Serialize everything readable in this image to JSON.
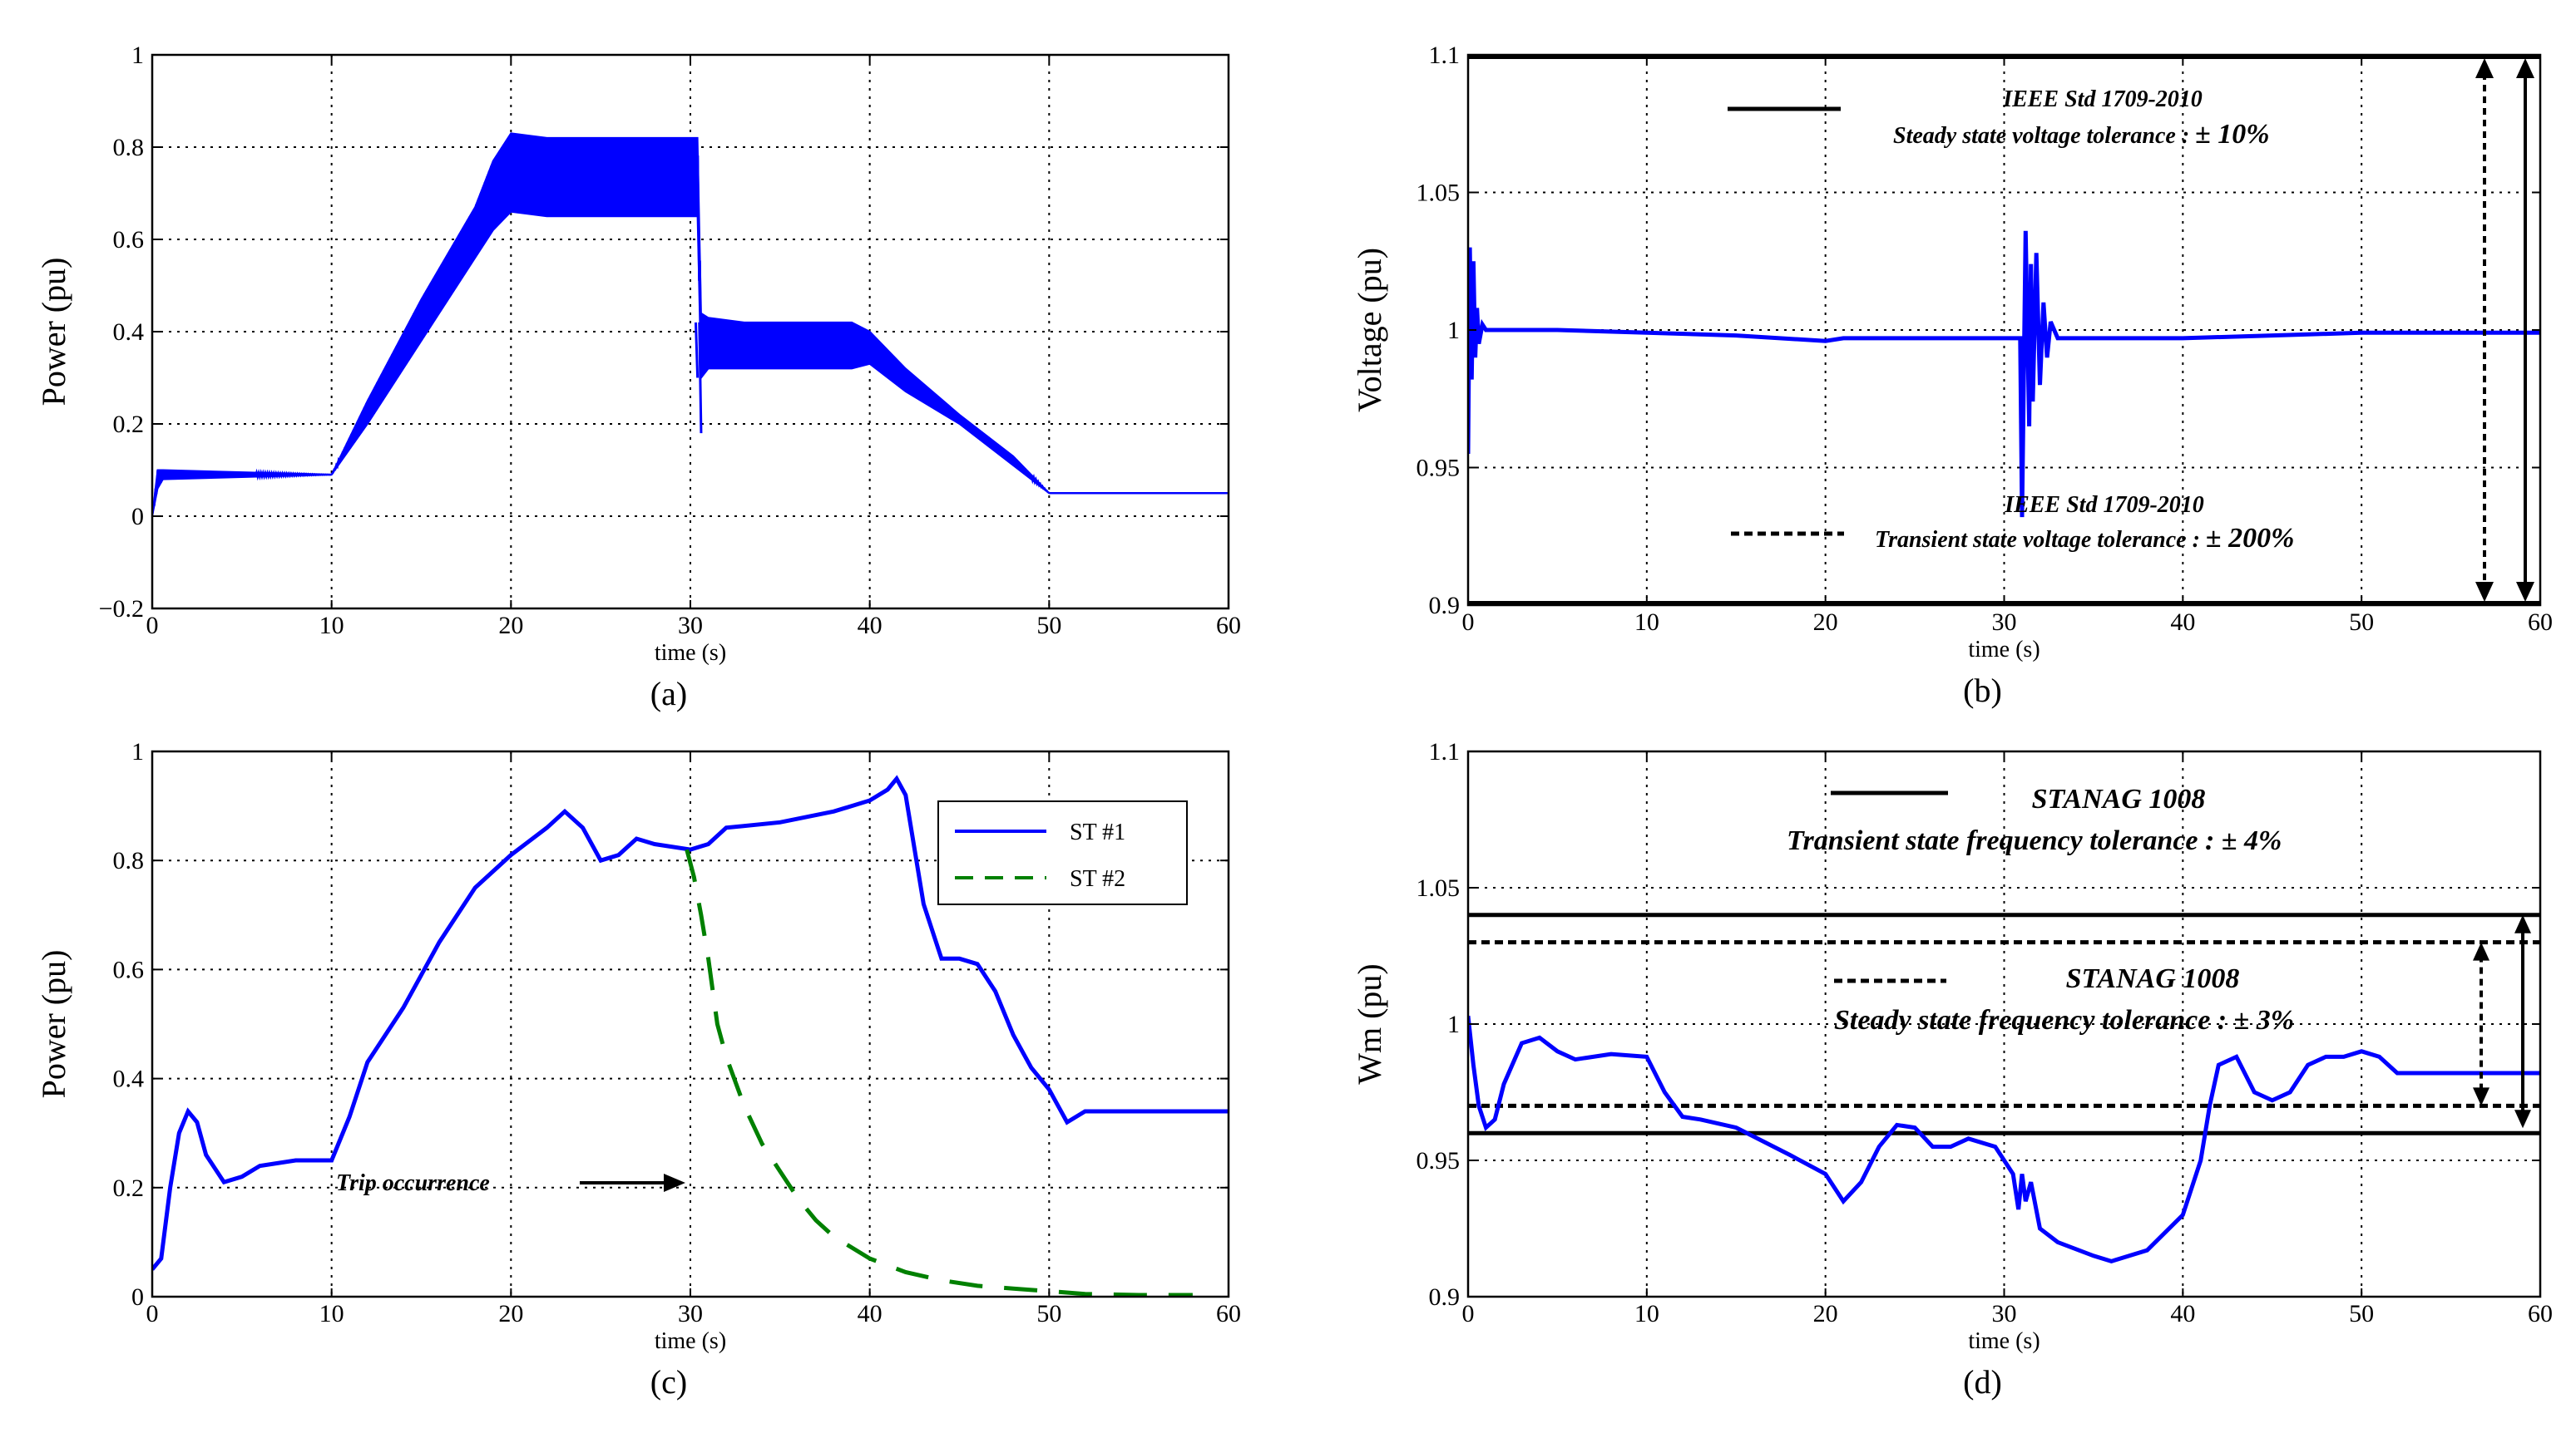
{
  "chart_data": [
    {
      "id": "a",
      "type": "line",
      "caption": "(a)",
      "xlabel": "time (s)",
      "ylabel": "Power (pu)",
      "xlim": [
        0,
        60
      ],
      "ylim": [
        -0.2,
        1
      ],
      "xticks": [
        0,
        10,
        20,
        30,
        40,
        50,
        60
      ],
      "yticks": [
        -0.2,
        0,
        0.2,
        0.4,
        0.6,
        0.8,
        1
      ],
      "ytick_labels": [
        "−0.2",
        "0",
        "0.2",
        "0.4",
        "0.6",
        "0.8",
        "1"
      ],
      "series": [
        {
          "name": "Power",
          "color": "#0000ff",
          "style": "solid",
          "band": {
            "x": [
              0.0,
              0.3,
              0.6,
              10.0,
              12.0,
              15.0,
              18.0,
              19.0,
              20.0,
              22.0,
              25.0,
              28.0,
              30.4,
              30.6,
              31.0,
              33.0,
              36.0,
              39.0,
              40.0,
              42.0,
              45.0,
              48.0,
              50.0,
              55.0,
              60.0
            ],
            "low": [
              0.0,
              0.06,
              0.08,
              0.09,
              0.2,
              0.38,
              0.56,
              0.62,
              0.66,
              0.65,
              0.65,
              0.65,
              0.65,
              0.3,
              0.32,
              0.32,
              0.32,
              0.32,
              0.33,
              0.27,
              0.2,
              0.11,
              0.05,
              0.05,
              0.05
            ],
            "high": [
              0.0,
              0.1,
              0.1,
              0.09,
              0.25,
              0.47,
              0.67,
              0.77,
              0.83,
              0.82,
              0.82,
              0.82,
              0.82,
              0.44,
              0.43,
              0.42,
              0.42,
              0.42,
              0.4,
              0.32,
              0.22,
              0.13,
              0.05,
              0.05,
              0.05
            ]
          },
          "spikes": [
            [
              30.5,
              0.18
            ],
            [
              30.3,
              0.3
            ]
          ]
        }
      ]
    },
    {
      "id": "b",
      "type": "line",
      "caption": "(b)",
      "xlabel": "time (s)",
      "ylabel": "Voltage (pu)",
      "xlim": [
        0,
        60
      ],
      "ylim": [
        0.9,
        1.1
      ],
      "xticks": [
        0,
        10,
        20,
        30,
        40,
        50,
        60
      ],
      "yticks": [
        0.9,
        0.95,
        1,
        1.05,
        1.1
      ],
      "ytick_labels": [
        "0.9",
        "0.95",
        "1",
        "1.05",
        "1.1"
      ],
      "series": [
        {
          "name": "Voltage",
          "color": "#0000ff",
          "style": "solid",
          "x": [
            0.0,
            0.1,
            0.2,
            0.3,
            0.4,
            0.5,
            0.6,
            0.8,
            1.0,
            2.0,
            5.0,
            10.0,
            15.0,
            20.0,
            21.0,
            25.0,
            30.0,
            30.9,
            31.0,
            31.2,
            31.4,
            31.5,
            31.6,
            31.8,
            32.0,
            32.2,
            32.4,
            32.6,
            33.0,
            33.5,
            34.0,
            35.0,
            40.0,
            45.0,
            50.0,
            55.0,
            60.0
          ],
          "y": [
            0.955,
            1.03,
            0.982,
            1.025,
            0.99,
            1.008,
            0.995,
            1.002,
            1.0,
            1.0,
            1.0,
            0.999,
            0.998,
            0.996,
            0.997,
            0.997,
            0.997,
            0.997,
            0.932,
            1.036,
            0.965,
            1.024,
            0.974,
            1.028,
            0.98,
            1.01,
            0.99,
            1.003,
            0.997,
            0.997,
            0.997,
            0.997,
            0.997,
            0.998,
            0.999,
            0.999,
            0.999
          ]
        }
      ],
      "legend": {
        "solid_label": "IEEE Std 1709-2010",
        "solid_desc": "Steady state voltage tolerance : ",
        "solid_value": "± 10%",
        "dashed_label": "IEEE Std 1709-2010",
        "dashed_desc": "Transient state voltage tolerance : ",
        "dashed_value": "± 200%"
      }
    },
    {
      "id": "c",
      "type": "line",
      "caption": "(c)",
      "xlabel": "time (s)",
      "ylabel": "Power (pu)",
      "xlim": [
        0,
        60
      ],
      "ylim": [
        0,
        1
      ],
      "xticks": [
        0,
        10,
        20,
        30,
        40,
        50,
        60
      ],
      "yticks": [
        0,
        0.2,
        0.4,
        0.6,
        0.8,
        1
      ],
      "ytick_labels": [
        "0",
        "0.2",
        "0.4",
        "0.6",
        "0.8",
        "1"
      ],
      "legend_entries": [
        "ST #1",
        "ST #2"
      ],
      "annotation": "Trip occurrence",
      "series": [
        {
          "name": "ST #1",
          "color": "#0000ff",
          "style": "solid",
          "x": [
            0.0,
            0.5,
            1.0,
            1.5,
            2.0,
            2.5,
            3.0,
            4.0,
            5.0,
            6.0,
            8.0,
            10.0,
            11.0,
            12.0,
            14.0,
            16.0,
            18.0,
            20.0,
            22.0,
            23.0,
            24.0,
            25.0,
            26.0,
            27.0,
            28.0,
            30.0,
            31.0,
            32.0,
            35.0,
            38.0,
            40.0,
            41.0,
            41.5,
            42.0,
            43.0,
            44.0,
            45.0,
            46.0,
            47.0,
            48.0,
            49.0,
            50.0,
            50.5,
            51.0,
            52.0,
            54.0,
            56.0,
            58.0,
            60.0
          ],
          "y": [
            0.05,
            0.07,
            0.2,
            0.3,
            0.34,
            0.32,
            0.26,
            0.21,
            0.22,
            0.24,
            0.25,
            0.25,
            0.33,
            0.43,
            0.53,
            0.65,
            0.75,
            0.81,
            0.86,
            0.89,
            0.86,
            0.8,
            0.81,
            0.84,
            0.83,
            0.82,
            0.83,
            0.86,
            0.87,
            0.89,
            0.91,
            0.93,
            0.95,
            0.92,
            0.72,
            0.62,
            0.62,
            0.61,
            0.56,
            0.48,
            0.42,
            0.38,
            0.35,
            0.32,
            0.34,
            0.34,
            0.34,
            0.34,
            0.34
          ]
        },
        {
          "name": "ST #2",
          "color": "#008000",
          "style": "dashed",
          "x": [
            29.8,
            30.2,
            30.6,
            31.0,
            31.5,
            32.0,
            33.0,
            34.0,
            35.0,
            36.0,
            37.0,
            38.0,
            40.0,
            42.0,
            44.0,
            46.0,
            48.0,
            50.0,
            52.0,
            55.0,
            58.0
          ],
          "y": [
            0.82,
            0.77,
            0.7,
            0.62,
            0.5,
            0.44,
            0.35,
            0.28,
            0.23,
            0.18,
            0.14,
            0.11,
            0.07,
            0.045,
            0.03,
            0.02,
            0.015,
            0.01,
            0.005,
            0.003,
            0.003
          ]
        }
      ]
    },
    {
      "id": "d",
      "type": "line",
      "caption": "(d)",
      "xlabel": "time (s)",
      "ylabel": "Wm (pu)",
      "xlim": [
        0,
        60
      ],
      "ylim": [
        0.9,
        1.1
      ],
      "xticks": [
        0,
        10,
        20,
        30,
        40,
        50,
        60
      ],
      "yticks": [
        0.9,
        0.95,
        1,
        1.05,
        1.1
      ],
      "ytick_labels": [
        "0.9",
        "0.95",
        "1",
        "1.05",
        "1.1"
      ],
      "thresholds": {
        "solid": [
          0.96,
          1.04
        ],
        "dashed": [
          0.97,
          1.03
        ]
      },
      "series": [
        {
          "name": "Wm",
          "color": "#0000ff",
          "style": "solid",
          "x": [
            0.0,
            0.3,
            0.6,
            1.0,
            1.5,
            2.0,
            3.0,
            4.0,
            5.0,
            6.0,
            8.0,
            10.0,
            11.0,
            12.0,
            13.0,
            15.0,
            18.0,
            20.0,
            21.0,
            22.0,
            23.0,
            24.0,
            25.0,
            26.0,
            27.0,
            28.0,
            29.5,
            30.5,
            30.8,
            31.0,
            31.2,
            31.5,
            32.0,
            33.0,
            35.0,
            36.0,
            38.0,
            40.0,
            41.0,
            41.5,
            42.0,
            43.0,
            44.0,
            45.0,
            46.0,
            47.0,
            48.0,
            49.0,
            50.0,
            51.0,
            52.0,
            54.0,
            56.0,
            60.0
          ],
          "y": [
            1.003,
            0.985,
            0.97,
            0.962,
            0.965,
            0.978,
            0.993,
            0.995,
            0.99,
            0.987,
            0.989,
            0.988,
            0.975,
            0.966,
            0.965,
            0.962,
            0.952,
            0.945,
            0.935,
            0.942,
            0.955,
            0.963,
            0.962,
            0.955,
            0.955,
            0.958,
            0.955,
            0.945,
            0.932,
            0.945,
            0.935,
            0.942,
            0.925,
            0.92,
            0.915,
            0.913,
            0.917,
            0.93,
            0.95,
            0.97,
            0.985,
            0.988,
            0.975,
            0.972,
            0.975,
            0.985,
            0.988,
            0.988,
            0.99,
            0.988,
            0.982,
            0.982,
            0.982,
            0.982
          ]
        }
      ],
      "legend": {
        "solid_label": "STANAG 1008",
        "solid_desc": "Transient state frequency tolerance : ",
        "solid_value": "± 4%",
        "dashed_label": "STANAG 1008",
        "dashed_desc": "Steady state frequency tolerance : ",
        "dashed_value": "± 3%"
      }
    }
  ]
}
